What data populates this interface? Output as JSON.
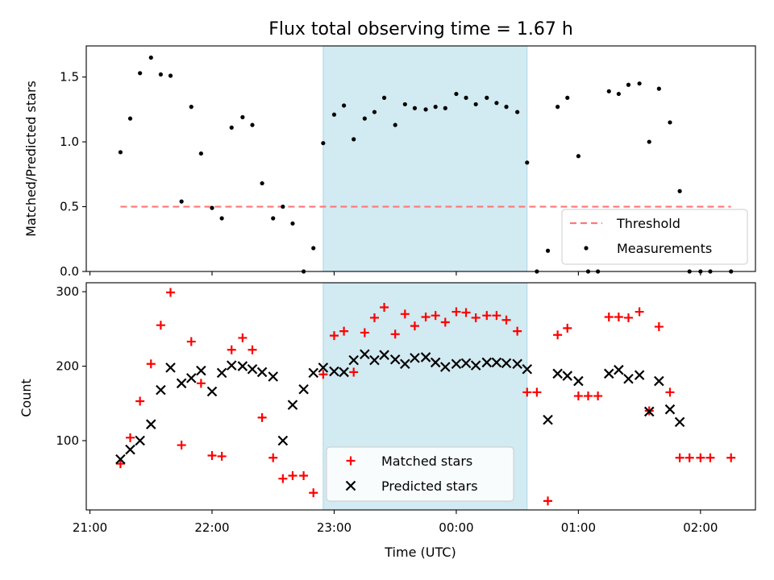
{
  "chart_data": [
    {
      "type": "scatter",
      "title": "Flux total observing time = 1.67 h",
      "xlabel": "",
      "ylabel": "Matched/Predicted stars",
      "x_unit": "hours since 21:00 UTC",
      "xlim": [
        -0.03,
        5.45
      ],
      "ylim": [
        0,
        1.74
      ],
      "yticks": [
        0.0,
        0.5,
        1.0,
        1.5
      ],
      "ytick_labels": [
        "0.0",
        "0.5",
        "1.0",
        "1.5"
      ],
      "shaded_x": [
        1.91,
        3.58
      ],
      "shaded_color": "#add8e6",
      "legend_position": "lower right",
      "series": [
        {
          "name": "Threshold",
          "style": "dashed-line",
          "color": "#ff7777",
          "x": [
            0.25,
            5.25
          ],
          "y": [
            0.5,
            0.5
          ]
        },
        {
          "name": "Measurements",
          "style": "dot",
          "color": "#000000",
          "x": [
            0.25,
            0.33,
            0.41,
            0.5,
            0.58,
            0.66,
            0.75,
            0.83,
            0.91,
            1.0,
            1.08,
            1.16,
            1.25,
            1.33,
            1.41,
            1.5,
            1.58,
            1.66,
            1.75,
            1.83,
            1.91,
            2.0,
            2.08,
            2.16,
            2.25,
            2.33,
            2.41,
            2.5,
            2.58,
            2.66,
            2.75,
            2.83,
            2.91,
            3.0,
            3.08,
            3.16,
            3.25,
            3.33,
            3.41,
            3.5,
            3.58,
            3.66,
            3.75,
            3.83,
            3.91,
            4.0,
            4.08,
            4.16,
            4.25,
            4.33,
            4.41,
            4.5,
            4.58,
            4.66,
            4.75,
            4.83,
            4.91,
            5.0,
            5.08,
            5.25
          ],
          "y": [
            0.92,
            1.18,
            1.53,
            1.65,
            1.52,
            1.51,
            0.54,
            1.27,
            0.91,
            0.49,
            0.41,
            1.11,
            1.19,
            1.13,
            0.68,
            0.41,
            0.5,
            0.37,
            0.0,
            0.18,
            0.99,
            1.21,
            1.28,
            1.02,
            1.18,
            1.23,
            1.34,
            1.13,
            1.29,
            1.26,
            1.25,
            1.27,
            1.26,
            1.37,
            1.34,
            1.29,
            1.34,
            1.3,
            1.27,
            1.23,
            0.84,
            0.0,
            0.16,
            1.27,
            1.34,
            0.89,
            0.0,
            0.0,
            1.39,
            1.37,
            1.44,
            1.45,
            1.0,
            1.41,
            1.15,
            0.62,
            0.0,
            0.0,
            0.0,
            0.0
          ]
        }
      ]
    },
    {
      "type": "scatter",
      "title": "",
      "xlabel": "Time (UTC)",
      "ylabel": "Count",
      "x_unit": "hours since 21:00 UTC",
      "xlim": [
        -0.03,
        5.45
      ],
      "ylim": [
        7,
        312
      ],
      "xticks": [
        0,
        1,
        2,
        3,
        4,
        5
      ],
      "xtick_labels": [
        "21:00",
        "22:00",
        "23:00",
        "00:00",
        "01:00",
        "02:00"
      ],
      "yticks": [
        100,
        200,
        300
      ],
      "ytick_labels": [
        "100",
        "200",
        "300"
      ],
      "shaded_x": [
        1.91,
        3.58
      ],
      "shaded_color": "#add8e6",
      "legend_position": "lower center",
      "series": [
        {
          "name": "Matched stars",
          "style": "plus",
          "color": "#ff0000",
          "x": [
            0.25,
            0.33,
            0.41,
            0.5,
            0.58,
            0.66,
            0.75,
            0.83,
            0.91,
            1.0,
            1.08,
            1.16,
            1.25,
            1.33,
            1.41,
            1.5,
            1.58,
            1.66,
            1.75,
            1.83,
            1.91,
            2.0,
            2.08,
            2.16,
            2.25,
            2.33,
            2.41,
            2.5,
            2.58,
            2.66,
            2.75,
            2.83,
            2.91,
            3.0,
            3.08,
            3.16,
            3.25,
            3.33,
            3.41,
            3.5,
            3.58,
            3.66,
            3.75,
            3.83,
            3.91,
            4.0,
            4.08,
            4.16,
            4.25,
            4.33,
            4.41,
            4.5,
            4.58,
            4.66,
            4.75,
            4.83,
            4.91,
            5.0,
            5.08,
            5.25
          ],
          "y": [
            69,
            104,
            153,
            203,
            255,
            299,
            94,
            233,
            177,
            80,
            79,
            222,
            238,
            222,
            131,
            77,
            49,
            53,
            53,
            30,
            189,
            241,
            247,
            192,
            245,
            265,
            279,
            243,
            270,
            254,
            266,
            268,
            259,
            273,
            272,
            265,
            268,
            268,
            262,
            247,
            165,
            165,
            19,
            242,
            251,
            160,
            160,
            160,
            266,
            266,
            265,
            273,
            140,
            253,
            165,
            77,
            77,
            77,
            77,
            77
          ]
        },
        {
          "name": "Predicted stars",
          "style": "x",
          "color": "#000000",
          "x": [
            0.25,
            0.33,
            0.41,
            0.5,
            0.58,
            0.66,
            0.75,
            0.83,
            0.91,
            1.0,
            1.08,
            1.16,
            1.25,
            1.33,
            1.41,
            1.5,
            1.58,
            1.66,
            1.75,
            1.83,
            1.91,
            2.0,
            2.08,
            2.16,
            2.25,
            2.33,
            2.41,
            2.5,
            2.58,
            2.66,
            2.75,
            2.83,
            2.91,
            3.0,
            3.08,
            3.16,
            3.25,
            3.33,
            3.41,
            3.5,
            3.58,
            3.75,
            3.83,
            3.91,
            4.0,
            4.25,
            4.33,
            4.41,
            4.5,
            4.58,
            4.66,
            4.75,
            4.83
          ],
          "y": [
            75,
            88,
            100,
            122,
            168,
            198,
            177,
            184,
            194,
            166,
            191,
            201,
            200,
            196,
            192,
            186,
            100,
            148,
            169,
            191,
            198,
            193,
            192,
            208,
            216,
            208,
            215,
            209,
            203,
            211,
            212,
            205,
            199,
            203,
            204,
            201,
            205,
            205,
            204,
            203,
            196,
            128,
            190,
            187,
            180,
            190,
            195,
            183,
            188,
            139,
            180,
            142,
            125
          ]
        }
      ]
    }
  ]
}
